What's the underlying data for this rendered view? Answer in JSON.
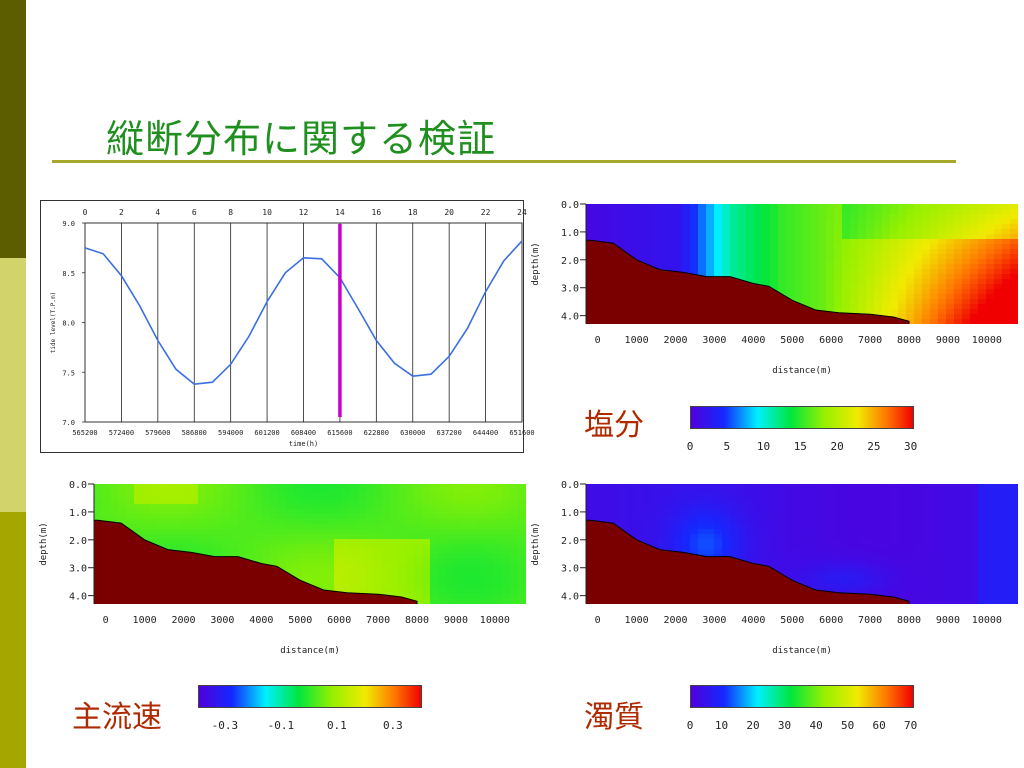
{
  "slide": {
    "title": "縦断分布に関する検証",
    "colors": {
      "title": "#1f8f1f",
      "title_rule": "#a8a82a",
      "sidebar": [
        "#5c5c00",
        "#d3d36b",
        "#a6a600"
      ],
      "section_label": "#b02a00",
      "bottom_fill": "#7a0000"
    }
  },
  "tide_chart": {
    "chart_data": {
      "type": "line",
      "xlabel": "time(h)",
      "ylabel": "tide level(T.P.m)",
      "top_ticks": [
        "0",
        "2",
        "4",
        "6",
        "8",
        "10",
        "12",
        "14",
        "16",
        "18",
        "20",
        "22",
        "24"
      ],
      "bottom_ticks": [
        "565200",
        "572400",
        "579600",
        "586800",
        "594000",
        "601200",
        "608400",
        "615600",
        "622800",
        "630000",
        "637200",
        "644400",
        "651600"
      ],
      "y_ticks": [
        "9.0",
        "8.5",
        "8.0",
        "7.5",
        "7.0"
      ],
      "ylim": [
        7.0,
        9.0
      ],
      "xlim": [
        0,
        24
      ],
      "x": [
        0,
        1,
        2,
        3,
        4,
        5,
        6,
        7,
        8,
        9,
        10,
        11,
        12,
        13,
        14,
        15,
        16,
        17,
        18,
        19,
        20,
        21,
        22,
        23,
        24
      ],
      "values": [
        8.75,
        8.69,
        8.47,
        8.17,
        7.82,
        7.53,
        7.38,
        7.4,
        7.58,
        7.86,
        8.21,
        8.5,
        8.65,
        8.64,
        8.45,
        8.14,
        7.82,
        7.59,
        7.46,
        7.48,
        7.66,
        7.94,
        8.31,
        8.62,
        8.82
      ],
      "line_color": "#3a6fe0",
      "marker_hour": 14,
      "marker_color": "#cc00cc"
    }
  },
  "panels": {
    "salinity": {
      "label": "塩分",
      "colorbar_ticks": [
        "0",
        "5",
        "10",
        "15",
        "20",
        "25",
        "30"
      ]
    },
    "velocity": {
      "label": "主流速",
      "colorbar_ticks": [
        "-0.3",
        "-0.1",
        "0.1",
        "0.3"
      ]
    },
    "turbidity": {
      "label": "濁質",
      "colorbar_ticks": [
        "0",
        "10",
        "20",
        "30",
        "40",
        "50",
        "60",
        "70"
      ]
    }
  },
  "section_axes": {
    "ylabel": "depth(m)",
    "xlabel": "distance(m)",
    "y_ticks": [
      "0.0",
      "1.0",
      "2.0",
      "3.0",
      "4.0"
    ],
    "x_ticks": [
      "0",
      "1000",
      "2000",
      "3000",
      "4000",
      "5000",
      "6000",
      "7000",
      "8000",
      "9000",
      "10000"
    ],
    "bed_profile": [
      [
        -200,
        1.3
      ],
      [
        400,
        1.4
      ],
      [
        1000,
        2.0
      ],
      [
        1600,
        2.35
      ],
      [
        2200,
        2.45
      ],
      [
        2800,
        2.6
      ],
      [
        3400,
        2.6
      ],
      [
        4000,
        2.85
      ],
      [
        4400,
        2.95
      ],
      [
        5000,
        3.45
      ],
      [
        5600,
        3.8
      ],
      [
        6200,
        3.9
      ],
      [
        7000,
        3.95
      ],
      [
        7600,
        4.05
      ],
      [
        8000,
        4.2
      ]
    ]
  }
}
